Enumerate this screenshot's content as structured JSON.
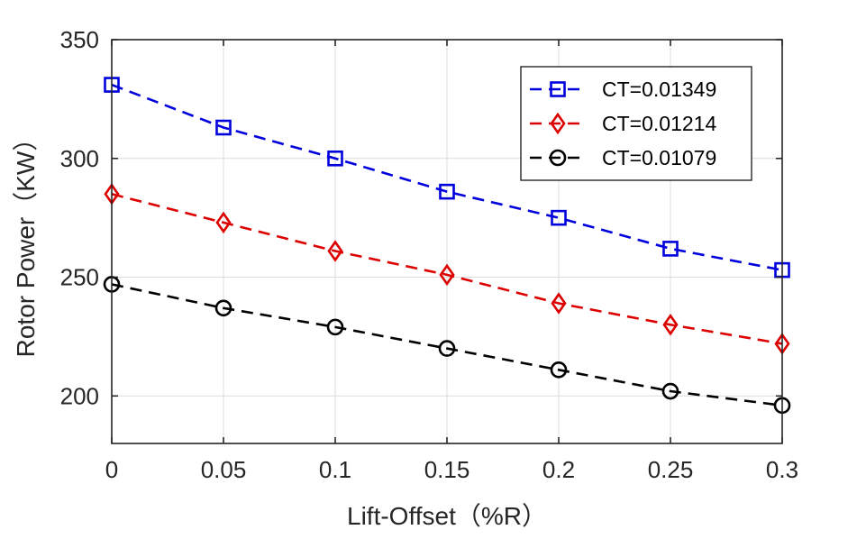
{
  "chart_data": {
    "type": "line",
    "title": "",
    "xlabel": "Lift-Offset（%R）",
    "ylabel": "Rotor Power（KW）",
    "x": [
      0,
      0.05,
      0.1,
      0.15,
      0.2,
      0.25,
      0.3
    ],
    "x_tick_labels": [
      "0",
      "0.05",
      "0.1",
      "0.15",
      "0.2",
      "0.25",
      "0.3"
    ],
    "y_ticks": [
      200,
      250,
      300,
      350
    ],
    "xlim": [
      0,
      0.3
    ],
    "ylim": [
      180,
      350
    ],
    "grid": true,
    "legend_position": "top-right",
    "series": [
      {
        "name": "CT=0.01349",
        "color": "#0000dd",
        "marker": "square",
        "values": [
          331,
          313,
          300,
          286,
          275,
          262,
          253
        ]
      },
      {
        "name": "CT=0.01214",
        "color": "#dd0000",
        "marker": "diamond",
        "values": [
          285,
          273,
          261,
          251,
          239,
          230,
          222
        ]
      },
      {
        "name": "CT=0.01079",
        "color": "#000000",
        "marker": "circle",
        "values": [
          247,
          237,
          229,
          220,
          211,
          202,
          196
        ]
      }
    ]
  }
}
